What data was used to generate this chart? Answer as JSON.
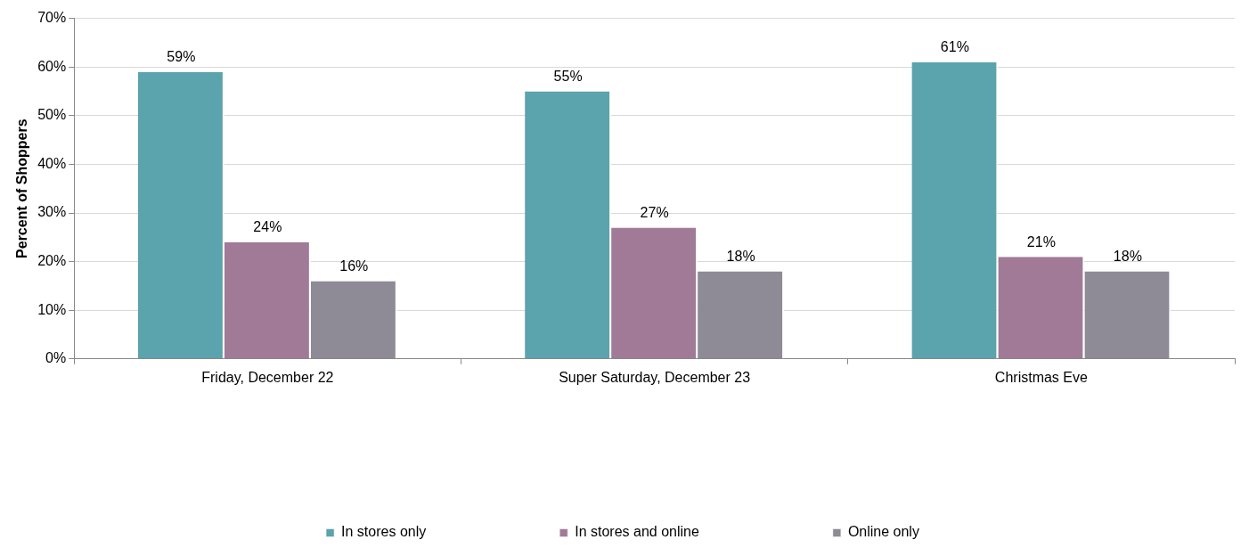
{
  "chart_data": {
    "type": "bar",
    "ylabel": "Percent of Shoppers",
    "categories": [
      "Friday, December 22",
      "Super Saturday, December 23",
      "Christmas Eve"
    ],
    "series": [
      {
        "name": "In stores only",
        "color": "#5ba3ad",
        "values": [
          59,
          55,
          61
        ],
        "value_labels": [
          "59%",
          "55%",
          "61%"
        ]
      },
      {
        "name": "In stores and online",
        "color": "#a07a96",
        "values": [
          24,
          27,
          21
        ],
        "value_labels": [
          "24%",
          "27%",
          "21%"
        ]
      },
      {
        "name": "Online only",
        "color": "#8e8a96",
        "values": [
          16,
          18,
          18
        ],
        "value_labels": [
          "16%",
          "18%",
          "18%"
        ]
      }
    ],
    "ylim": [
      0,
      70
    ],
    "yticks": [
      {
        "value": 0,
        "label": "0%"
      },
      {
        "value": 10,
        "label": "10%"
      },
      {
        "value": 20,
        "label": "20%"
      },
      {
        "value": 30,
        "label": "30%"
      },
      {
        "value": 40,
        "label": "40%"
      },
      {
        "value": 50,
        "label": "50%"
      },
      {
        "value": 60,
        "label": "60%"
      },
      {
        "value": 70,
        "label": "70%"
      }
    ],
    "grid": "y",
    "legend": "bottom"
  }
}
